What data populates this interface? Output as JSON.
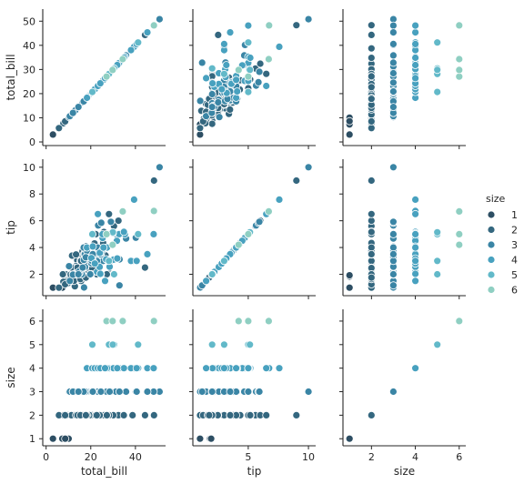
{
  "chart_data": {
    "type": "scatter",
    "title": "",
    "variables": [
      "total_bill",
      "tip",
      "size"
    ],
    "axes": {
      "total_bill": {
        "lim": [
          -1.5,
          53.5
        ],
        "ticks": [
          0,
          20,
          40
        ],
        "tick_labels": [
          "0",
          "20",
          "40"
        ],
        "ylim": [
          -1.5,
          55
        ],
        "yticks": [
          0,
          10,
          20,
          30,
          40,
          50
        ],
        "ytick_labels": [
          "0",
          "10",
          "20",
          "30",
          "40",
          "50"
        ]
      },
      "tip": {
        "lim": [
          0.4,
          10.6
        ],
        "ticks": [
          5,
          10
        ],
        "tick_labels": [
          "5",
          "10"
        ],
        "ylim": [
          0.4,
          10.6
        ],
        "yticks": [
          2,
          4,
          6,
          8,
          10
        ],
        "ytick_labels": [
          "2",
          "4",
          "6",
          "8",
          "10"
        ]
      },
      "size": {
        "lim": [
          0.7,
          6.3
        ],
        "ticks": [
          2,
          4,
          6
        ],
        "tick_labels": [
          "2",
          "4",
          "6"
        ],
        "ylim": [
          0.7,
          6.5
        ],
        "yticks": [
          1,
          2,
          3,
          4,
          5,
          6
        ],
        "ytick_labels": [
          "1",
          "2",
          "3",
          "4",
          "5",
          "6"
        ]
      }
    },
    "hue": "size",
    "legend": {
      "title": "size",
      "placement": "right",
      "entries": [
        {
          "label": "1",
          "color": "#2d4e63"
        },
        {
          "label": "2",
          "color": "#34677f"
        },
        {
          "label": "3",
          "color": "#3a85a5"
        },
        {
          "label": "4",
          "color": "#48a1bf"
        },
        {
          "label": "5",
          "color": "#62b9c9"
        },
        {
          "label": "6",
          "color": "#8fcfc2"
        }
      ]
    },
    "series": [
      {
        "name": "1",
        "color": "#2d4e63",
        "points": [
          [
            3.07,
            1.0
          ],
          [
            7.25,
            1.0
          ],
          [
            10.07,
            1.83
          ],
          [
            8.58,
            1.92
          ]
        ]
      },
      {
        "name": "2",
        "color": "#34677f",
        "points": [
          [
            10.34,
            1.66
          ],
          [
            21.01,
            3.5
          ],
          [
            23.68,
            3.31
          ],
          [
            8.77,
            2.0
          ],
          [
            14.78,
            3.23
          ],
          [
            10.27,
            1.71
          ],
          [
            15.42,
            1.57
          ],
          [
            18.43,
            3.0
          ],
          [
            14.83,
            3.02
          ],
          [
            21.58,
            3.92
          ],
          [
            10.33,
            1.67
          ],
          [
            16.29,
            3.71
          ],
          [
            16.97,
            3.5
          ],
          [
            20.65,
            3.35
          ],
          [
            17.92,
            4.08
          ],
          [
            20.29,
            2.75
          ],
          [
            15.77,
            2.23
          ],
          [
            19.82,
            3.18
          ],
          [
            17.81,
            2.34
          ],
          [
            13.37,
            2.0
          ],
          [
            12.69,
            2.0
          ],
          [
            21.7,
            4.3
          ],
          [
            9.55,
            1.45
          ],
          [
            18.35,
            2.5
          ],
          [
            15.06,
            3.0
          ],
          [
            20.69,
            2.45
          ],
          [
            13.94,
            3.06
          ],
          [
            9.68,
            1.32
          ],
          [
            30.4,
            5.6
          ],
          [
            18.29,
            3.0
          ],
          [
            22.23,
            5.0
          ],
          [
            32.4,
            6.0
          ],
          [
            28.55,
            2.05
          ],
          [
            18.04,
            3.0
          ],
          [
            12.54,
            2.5
          ],
          [
            10.29,
            2.6
          ],
          [
            34.81,
            5.2
          ],
          [
            9.94,
            1.56
          ],
          [
            25.56,
            4.34
          ],
          [
            19.49,
            3.51
          ],
          [
            11.69,
            2.31
          ],
          [
            13.42,
            1.68
          ],
          [
            8.35,
            1.5
          ],
          [
            15.69,
            1.5
          ],
          [
            12.16,
            2.2
          ],
          [
            13.81,
            2.0
          ],
          [
            11.02,
            1.98
          ],
          [
            18.29,
            3.76
          ],
          [
            17.59,
            2.64
          ],
          [
            13.0,
            2.0
          ],
          [
            7.51,
            2.0
          ],
          [
            26.59,
            3.41
          ],
          [
            38.73,
            3.0
          ],
          [
            24.27,
            2.03
          ],
          [
            12.26,
            2.0
          ],
          [
            13.39,
            2.61
          ],
          [
            16.21,
            2.0
          ],
          [
            15.98,
            2.03
          ],
          [
            7.74,
            1.44
          ],
          [
            30.06,
            2.0
          ],
          [
            25.89,
            5.16
          ],
          [
            48.33,
            9.0
          ],
          [
            13.27,
            2.5
          ],
          [
            28.17,
            6.5
          ],
          [
            12.9,
            1.1
          ],
          [
            22.42,
            3.48
          ],
          [
            15.48,
            2.02
          ],
          [
            5.75,
            1.0
          ],
          [
            11.61,
            3.39
          ],
          [
            11.59,
            1.5
          ],
          [
            12.43,
            1.8
          ],
          [
            14.26,
            2.5
          ],
          [
            12.46,
            1.5
          ],
          [
            11.35,
            2.5
          ],
          [
            15.38,
            3.0
          ],
          [
            44.3,
            2.5
          ],
          [
            22.12,
            2.88
          ],
          [
            24.01,
            2.0
          ],
          [
            15.69,
            3.0
          ],
          [
            8.51,
            1.25
          ],
          [
            13.42,
            3.48
          ],
          [
            14.07,
            2.5
          ],
          [
            16.45,
            2.47
          ],
          [
            27.28,
            4.0
          ],
          [
            17.47,
            3.5
          ],
          [
            15.36,
            1.64
          ],
          [
            27.18,
            2.0
          ],
          [
            22.67,
            2.0
          ],
          [
            17.82,
            1.75
          ]
        ]
      },
      {
        "name": "3",
        "color": "#3a85a5",
        "points": [
          [
            16.99,
            1.01
          ],
          [
            20.65,
            3.35
          ],
          [
            23.33,
            5.65
          ],
          [
            17.46,
            2.54
          ],
          [
            10.29,
            2.6
          ],
          [
            25.56,
            3.0
          ],
          [
            19.82,
            3.5
          ],
          [
            50.81,
            10.0
          ],
          [
            48.17,
            5.0
          ],
          [
            32.9,
            3.11
          ],
          [
            20.08,
            3.15
          ],
          [
            28.97,
            3.0
          ],
          [
            21.16,
            3.0
          ],
          [
            22.75,
            3.25
          ],
          [
            40.17,
            4.73
          ],
          [
            22.76,
            3.0
          ],
          [
            17.31,
            3.5
          ],
          [
            16.0,
            2.0
          ],
          [
            20.23,
            2.01
          ],
          [
            18.71,
            4.0
          ],
          [
            26.88,
            3.12
          ],
          [
            15.01,
            2.09
          ],
          [
            16.93,
            3.07
          ],
          [
            10.65,
            1.5
          ],
          [
            12.0,
            2.0
          ],
          [
            20.27,
            2.83
          ],
          [
            13.03,
            2.0
          ],
          [
            24.71,
            5.85
          ],
          [
            21.5,
            3.5
          ],
          [
            18.24,
            3.76
          ],
          [
            45.35,
            3.5
          ],
          [
            23.1,
            4.0
          ],
          [
            24.52,
            3.48
          ],
          [
            35.83,
            4.67
          ],
          [
            29.03,
            5.92
          ],
          [
            14.73,
            2.2
          ],
          [
            31.27,
            5.0
          ],
          [
            21.01,
            3.0
          ],
          [
            16.4,
            2.5
          ],
          [
            17.78,
            3.27
          ],
          [
            28.15,
            3.0
          ],
          [
            32.83,
            1.17
          ],
          [
            12.02,
            1.97
          ],
          [
            20.49,
            4.06
          ],
          [
            25.0,
            3.75
          ],
          [
            40.55,
            3.0
          ],
          [
            19.77,
            2.0
          ],
          [
            27.05,
            5.0
          ],
          [
            16.82,
            4.0
          ],
          [
            28.44,
            2.56
          ],
          [
            20.45,
            3.0
          ],
          [
            24.55,
            2.0
          ],
          [
            14.48,
            2.0
          ],
          [
            20.9,
            3.5
          ]
        ]
      },
      {
        "name": "4",
        "color": "#48a1bf",
        "points": [
          [
            24.59,
            3.61
          ],
          [
            25.29,
            4.71
          ],
          [
            26.88,
            3.12
          ],
          [
            35.26,
            5.0
          ],
          [
            39.42,
            7.58
          ],
          [
            26.41,
            1.5
          ],
          [
            30.46,
            2.0
          ],
          [
            34.3,
            6.7
          ],
          [
            38.01,
            3.0
          ],
          [
            24.06,
            3.6
          ],
          [
            29.85,
            5.14
          ],
          [
            32.68,
            5.0
          ],
          [
            20.29,
            3.21
          ],
          [
            25.28,
            5.0
          ],
          [
            27.2,
            4.0
          ],
          [
            18.28,
            4.0
          ],
          [
            34.83,
            5.17
          ],
          [
            29.8,
            4.2
          ],
          [
            28.44,
            2.56
          ],
          [
            29.93,
            5.07
          ],
          [
            31.71,
            4.5
          ],
          [
            30.14,
            3.09
          ],
          [
            22.82,
            2.18
          ],
          [
            23.95,
            2.55
          ],
          [
            48.27,
            6.73
          ],
          [
            20.92,
            4.08
          ],
          [
            41.19,
            5.0
          ],
          [
            20.69,
            5.0
          ],
          [
            27.28,
            4.0
          ],
          [
            21.82,
            2.8
          ],
          [
            23.17,
            6.5
          ],
          [
            45.35,
            3.5
          ],
          [
            31.85,
            3.18
          ],
          [
            48.17,
            5.0
          ],
          [
            25.71,
            4.0
          ],
          [
            24.27,
            2.03
          ],
          [
            40.55,
            3.0
          ],
          [
            26.41,
            1.5
          ]
        ]
      },
      {
        "name": "5",
        "color": "#62b9c9",
        "points": [
          [
            30.46,
            2.0
          ],
          [
            28.15,
            3.0
          ],
          [
            20.69,
            5.0
          ],
          [
            41.19,
            5.0
          ],
          [
            29.85,
            5.14
          ]
        ]
      },
      {
        "name": "6",
        "color": "#8fcfc2",
        "points": [
          [
            48.27,
            6.73
          ],
          [
            34.3,
            6.7
          ],
          [
            27.05,
            5.0
          ],
          [
            29.8,
            4.2
          ]
        ]
      }
    ]
  }
}
